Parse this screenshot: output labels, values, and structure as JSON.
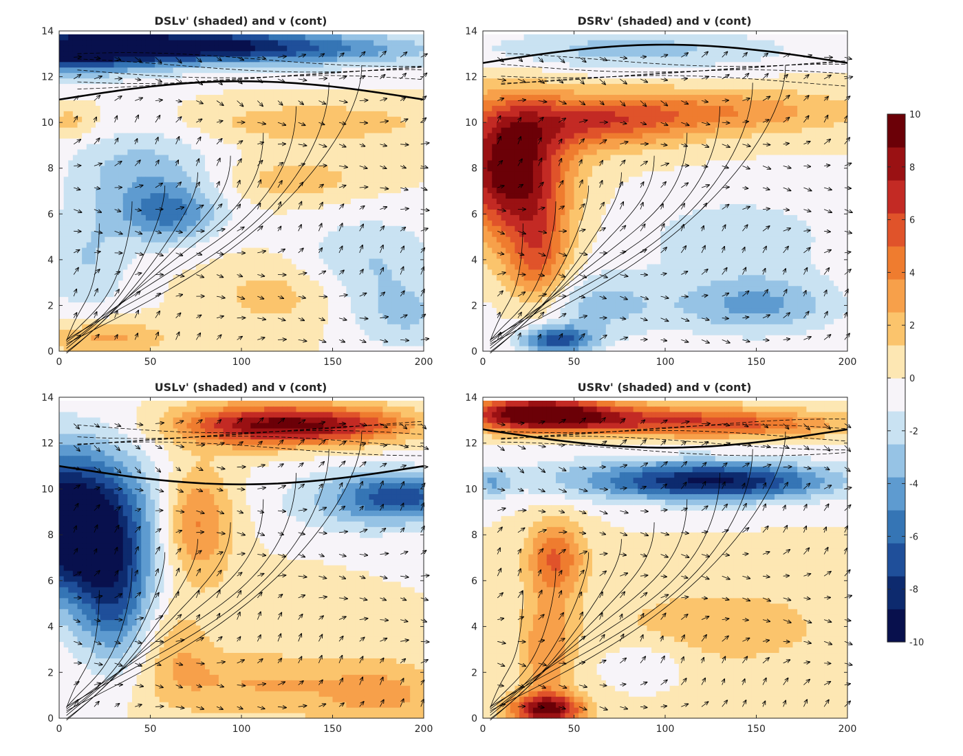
{
  "chart_data": [
    {
      "type": "heatmap",
      "title": "DSLv' (shaded) and v (cont)",
      "xlabel": "",
      "ylabel": "",
      "xlim": [
        0,
        200
      ],
      "ylim": [
        0,
        14
      ],
      "xticks": [
        0,
        50,
        100,
        150,
        200
      ],
      "yticks": [
        0,
        2,
        4,
        6,
        8,
        10,
        12,
        14
      ],
      "colorbar_range": [
        -10,
        10
      ],
      "field": [
        {
          "x": 5,
          "y": 13.2,
          "value": -10,
          "rx": 60,
          "ry": 1.0
        },
        {
          "x": 80,
          "y": 13.4,
          "value": -7,
          "rx": 60,
          "ry": 0.7
        },
        {
          "x": 150,
          "y": 13.2,
          "value": -4,
          "rx": 70,
          "ry": 0.8
        },
        {
          "x": 60,
          "y": 6.0,
          "value": -5,
          "rx": 28,
          "ry": 1.3
        },
        {
          "x": 45,
          "y": 8.0,
          "value": -3,
          "rx": 40,
          "ry": 1.8
        },
        {
          "x": 15,
          "y": 4.0,
          "value": -2.5,
          "rx": 25,
          "ry": 2.5
        },
        {
          "x": 140,
          "y": 10.0,
          "value": 2.5,
          "rx": 60,
          "ry": 0.8
        },
        {
          "x": 130,
          "y": 7.5,
          "value": 2.0,
          "rx": 40,
          "ry": 1.0
        },
        {
          "x": 120,
          "y": 2.5,
          "value": 2.0,
          "rx": 35,
          "ry": 1.5
        },
        {
          "x": 25,
          "y": 0.6,
          "value": 3.0,
          "rx": 35,
          "ry": 0.8
        },
        {
          "x": 170,
          "y": 4.0,
          "value": -2.5,
          "rx": 40,
          "ry": 2.0
        },
        {
          "x": 190,
          "y": 1.5,
          "value": -2.5,
          "rx": 30,
          "ry": 1.5
        },
        {
          "x": 5,
          "y": 10.0,
          "value": 2.0,
          "rx": 15,
          "ry": 0.7
        }
      ],
      "contour_label": "v"
    },
    {
      "type": "heatmap",
      "title": "DSRv' (shaded) and v (cont)",
      "xlabel": "",
      "ylabel": "",
      "xlim": [
        0,
        200
      ],
      "ylim": [
        0,
        14
      ],
      "xticks": [
        0,
        50,
        100,
        150,
        200
      ],
      "yticks": [
        0,
        2,
        4,
        6,
        8,
        10,
        12,
        14
      ],
      "colorbar_range": [
        -10,
        10
      ],
      "field": [
        {
          "x": 15,
          "y": 8.0,
          "value": 10,
          "rx": 30,
          "ry": 2.8
        },
        {
          "x": 60,
          "y": 10.0,
          "value": 5,
          "rx": 50,
          "ry": 1.2
        },
        {
          "x": 130,
          "y": 10.5,
          "value": 3.5,
          "rx": 75,
          "ry": 1.0
        },
        {
          "x": 30,
          "y": 4.0,
          "value": 5,
          "rx": 18,
          "ry": 2.5
        },
        {
          "x": 80,
          "y": 13.2,
          "value": -3,
          "rx": 90,
          "ry": 0.9
        },
        {
          "x": 40,
          "y": 0.5,
          "value": -7,
          "rx": 20,
          "ry": 0.6
        },
        {
          "x": 60,
          "y": 2.0,
          "value": -3,
          "rx": 40,
          "ry": 1.5
        },
        {
          "x": 150,
          "y": 2.0,
          "value": -4,
          "rx": 45,
          "ry": 1.3
        },
        {
          "x": 140,
          "y": 5.0,
          "value": -2,
          "rx": 60,
          "ry": 2.0
        }
      ],
      "contour_label": "v"
    },
    {
      "type": "heatmap",
      "title": "USLv' (shaded) and v (cont)",
      "xlabel": "",
      "ylabel": "",
      "xlim": [
        0,
        200
      ],
      "ylim": [
        0,
        14
      ],
      "xticks": [
        0,
        50,
        100,
        150,
        200
      ],
      "yticks": [
        0,
        2,
        4,
        6,
        8,
        10,
        12,
        14
      ],
      "colorbar_range": [
        -10,
        10
      ],
      "field": [
        {
          "x": 5,
          "y": 8.5,
          "value": -12,
          "rx": 42,
          "ry": 3.2
        },
        {
          "x": 30,
          "y": 5.0,
          "value": -5,
          "rx": 20,
          "ry": 3.0
        },
        {
          "x": 110,
          "y": 12.8,
          "value": 8,
          "rx": 45,
          "ry": 0.9
        },
        {
          "x": 160,
          "y": 12.8,
          "value": 5,
          "rx": 40,
          "ry": 0.8
        },
        {
          "x": 75,
          "y": 8.5,
          "value": 4.5,
          "rx": 20,
          "ry": 2.5
        },
        {
          "x": 190,
          "y": 9.7,
          "value": -5,
          "rx": 30,
          "ry": 1.0
        },
        {
          "x": 165,
          "y": 9.5,
          "value": -3,
          "rx": 45,
          "ry": 1.5
        },
        {
          "x": 110,
          "y": 1.5,
          "value": 2.5,
          "rx": 60,
          "ry": 1.5
        },
        {
          "x": 180,
          "y": 1.0,
          "value": 2.5,
          "rx": 35,
          "ry": 1.5
        },
        {
          "x": 65,
          "y": 3.0,
          "value": 2.0,
          "rx": 20,
          "ry": 2.0
        },
        {
          "x": 120,
          "y": 5.5,
          "value": 1.0,
          "rx": 30,
          "ry": 1.0
        }
      ],
      "contour_label": "v"
    },
    {
      "type": "heatmap",
      "title": "USRv' (shaded) and v (cont)",
      "xlabel": "",
      "ylabel": "",
      "xlim": [
        0,
        200
      ],
      "ylim": [
        0,
        14
      ],
      "xticks": [
        0,
        50,
        100,
        150,
        200
      ],
      "yticks": [
        0,
        2,
        4,
        6,
        8,
        10,
        12,
        14
      ],
      "colorbar_range": [
        -10,
        10
      ],
      "field": [
        {
          "x": 30,
          "y": 13.3,
          "value": 10,
          "rx": 40,
          "ry": 0.7
        },
        {
          "x": 90,
          "y": 13.0,
          "value": 5,
          "rx": 70,
          "ry": 0.7
        },
        {
          "x": 150,
          "y": 12.8,
          "value": 3,
          "rx": 60,
          "ry": 0.6
        },
        {
          "x": 130,
          "y": 10.3,
          "value": -6.5,
          "rx": 60,
          "ry": 0.8
        },
        {
          "x": 100,
          "y": 10.5,
          "value": -3,
          "rx": 90,
          "ry": 1.0
        },
        {
          "x": 35,
          "y": 0.4,
          "value": 9,
          "rx": 20,
          "ry": 0.7
        },
        {
          "x": 40,
          "y": 7.0,
          "value": 5,
          "rx": 16,
          "ry": 1.6
        },
        {
          "x": 35,
          "y": 3.0,
          "value": 3.5,
          "rx": 15,
          "ry": 2.5
        },
        {
          "x": 130,
          "y": 4.0,
          "value": 2.0,
          "rx": 70,
          "ry": 2.0
        },
        {
          "x": 90,
          "y": 2.5,
          "value": -1.5,
          "rx": 25,
          "ry": 1.0
        },
        {
          "x": 5,
          "y": 10.3,
          "value": -3,
          "rx": 10,
          "ry": 0.6
        }
      ],
      "contour_label": "v"
    }
  ],
  "colorbar": {
    "min": -10,
    "max": 10,
    "ticks": [
      10,
      8,
      6,
      4,
      2,
      0,
      -2,
      -4,
      -6,
      -8,
      -10
    ],
    "colormap": [
      "#08104d",
      "#0d2a6e",
      "#1f4f9a",
      "#3575b5",
      "#5e9bd0",
      "#96c3e5",
      "#c9e2f2",
      "#f7f4f9",
      "#fde7b3",
      "#fbc46c",
      "#f7a04a",
      "#ef7c2f",
      "#e0532a",
      "#c32a24",
      "#9a1113",
      "#6b0007"
    ]
  }
}
